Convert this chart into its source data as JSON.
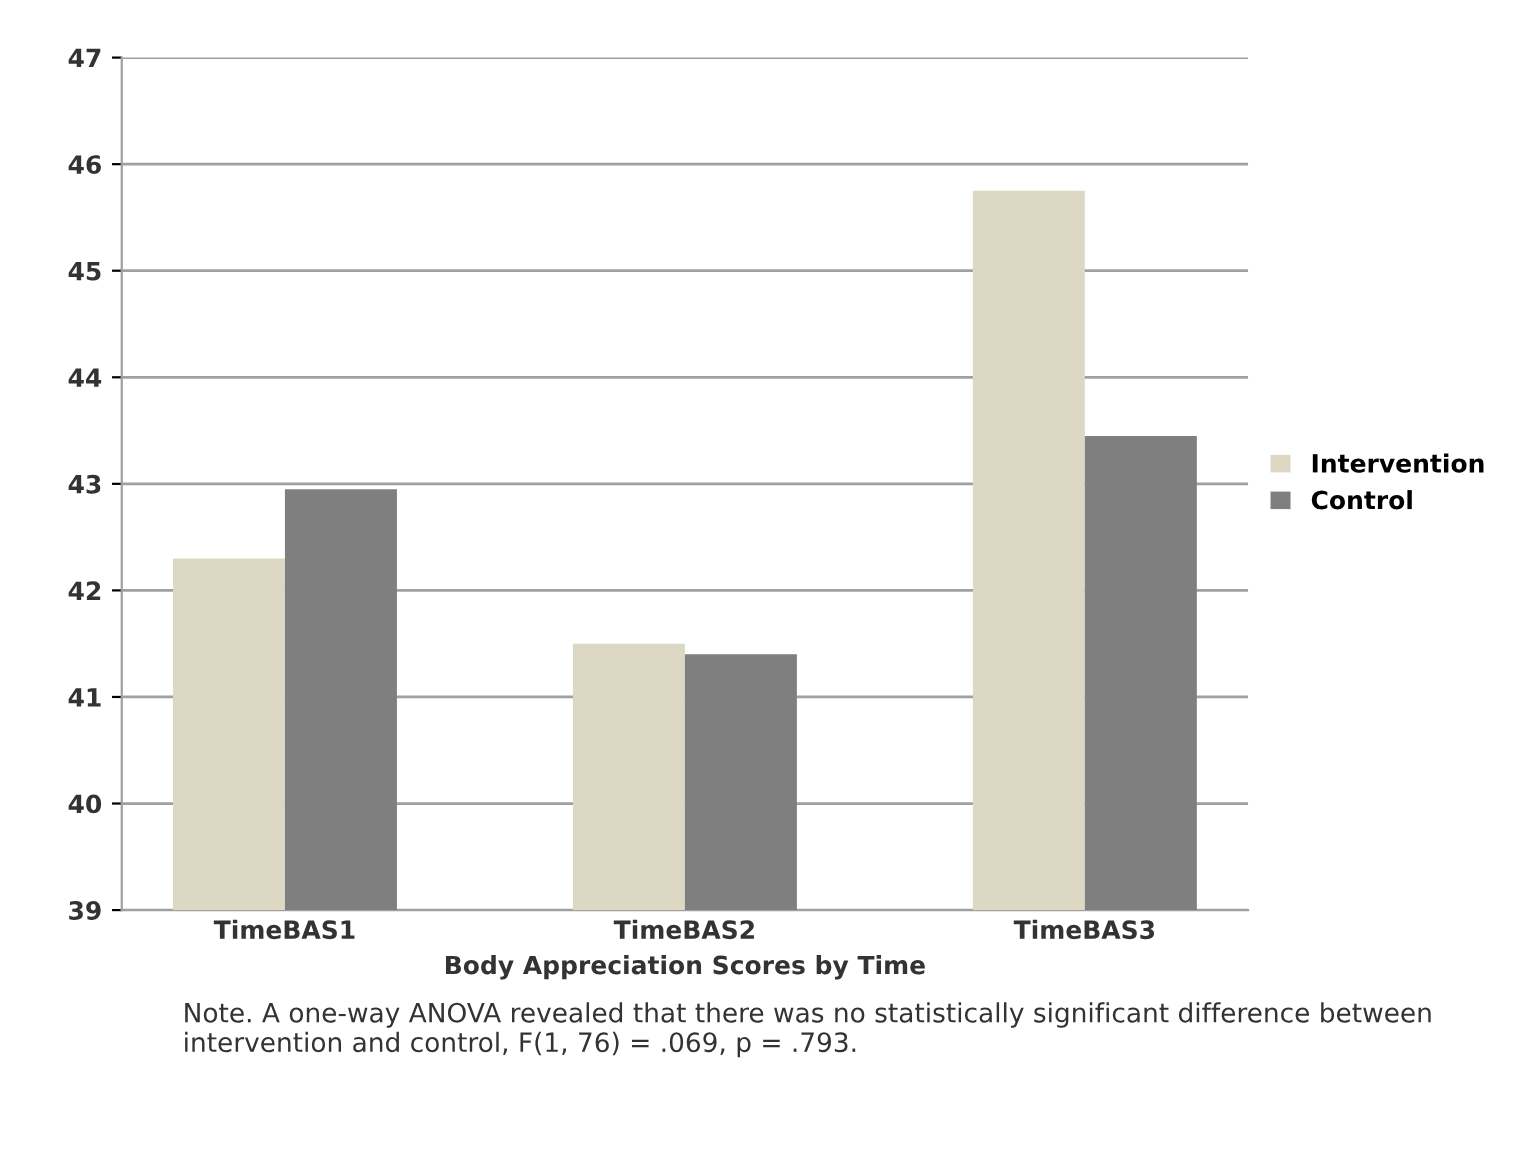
{
  "chart_data": {
    "type": "bar",
    "xlabel": "Body Appreciation Scores by Time",
    "categories": [
      "TimeBAS1",
      "TimeBAS2",
      "TimeBAS3"
    ],
    "series": [
      {
        "name": "Intervention",
        "color": "#ddd8c4",
        "values": [
          42.3,
          41.5,
          45.75
        ]
      },
      {
        "name": "Control",
        "color": "#7f7f7f",
        "values": [
          42.95,
          41.4,
          43.45
        ]
      }
    ],
    "ylim": [
      39,
      47
    ],
    "yticks": [
      39,
      40,
      41,
      42,
      43,
      44,
      45,
      46,
      47
    ],
    "grid": "y",
    "legend": "right",
    "annotations": [
      "Note. A one-way ANOVA revealed that there was no statistically significant difference between intervention and control, F(1, 76) = .069, p = .793."
    ]
  }
}
